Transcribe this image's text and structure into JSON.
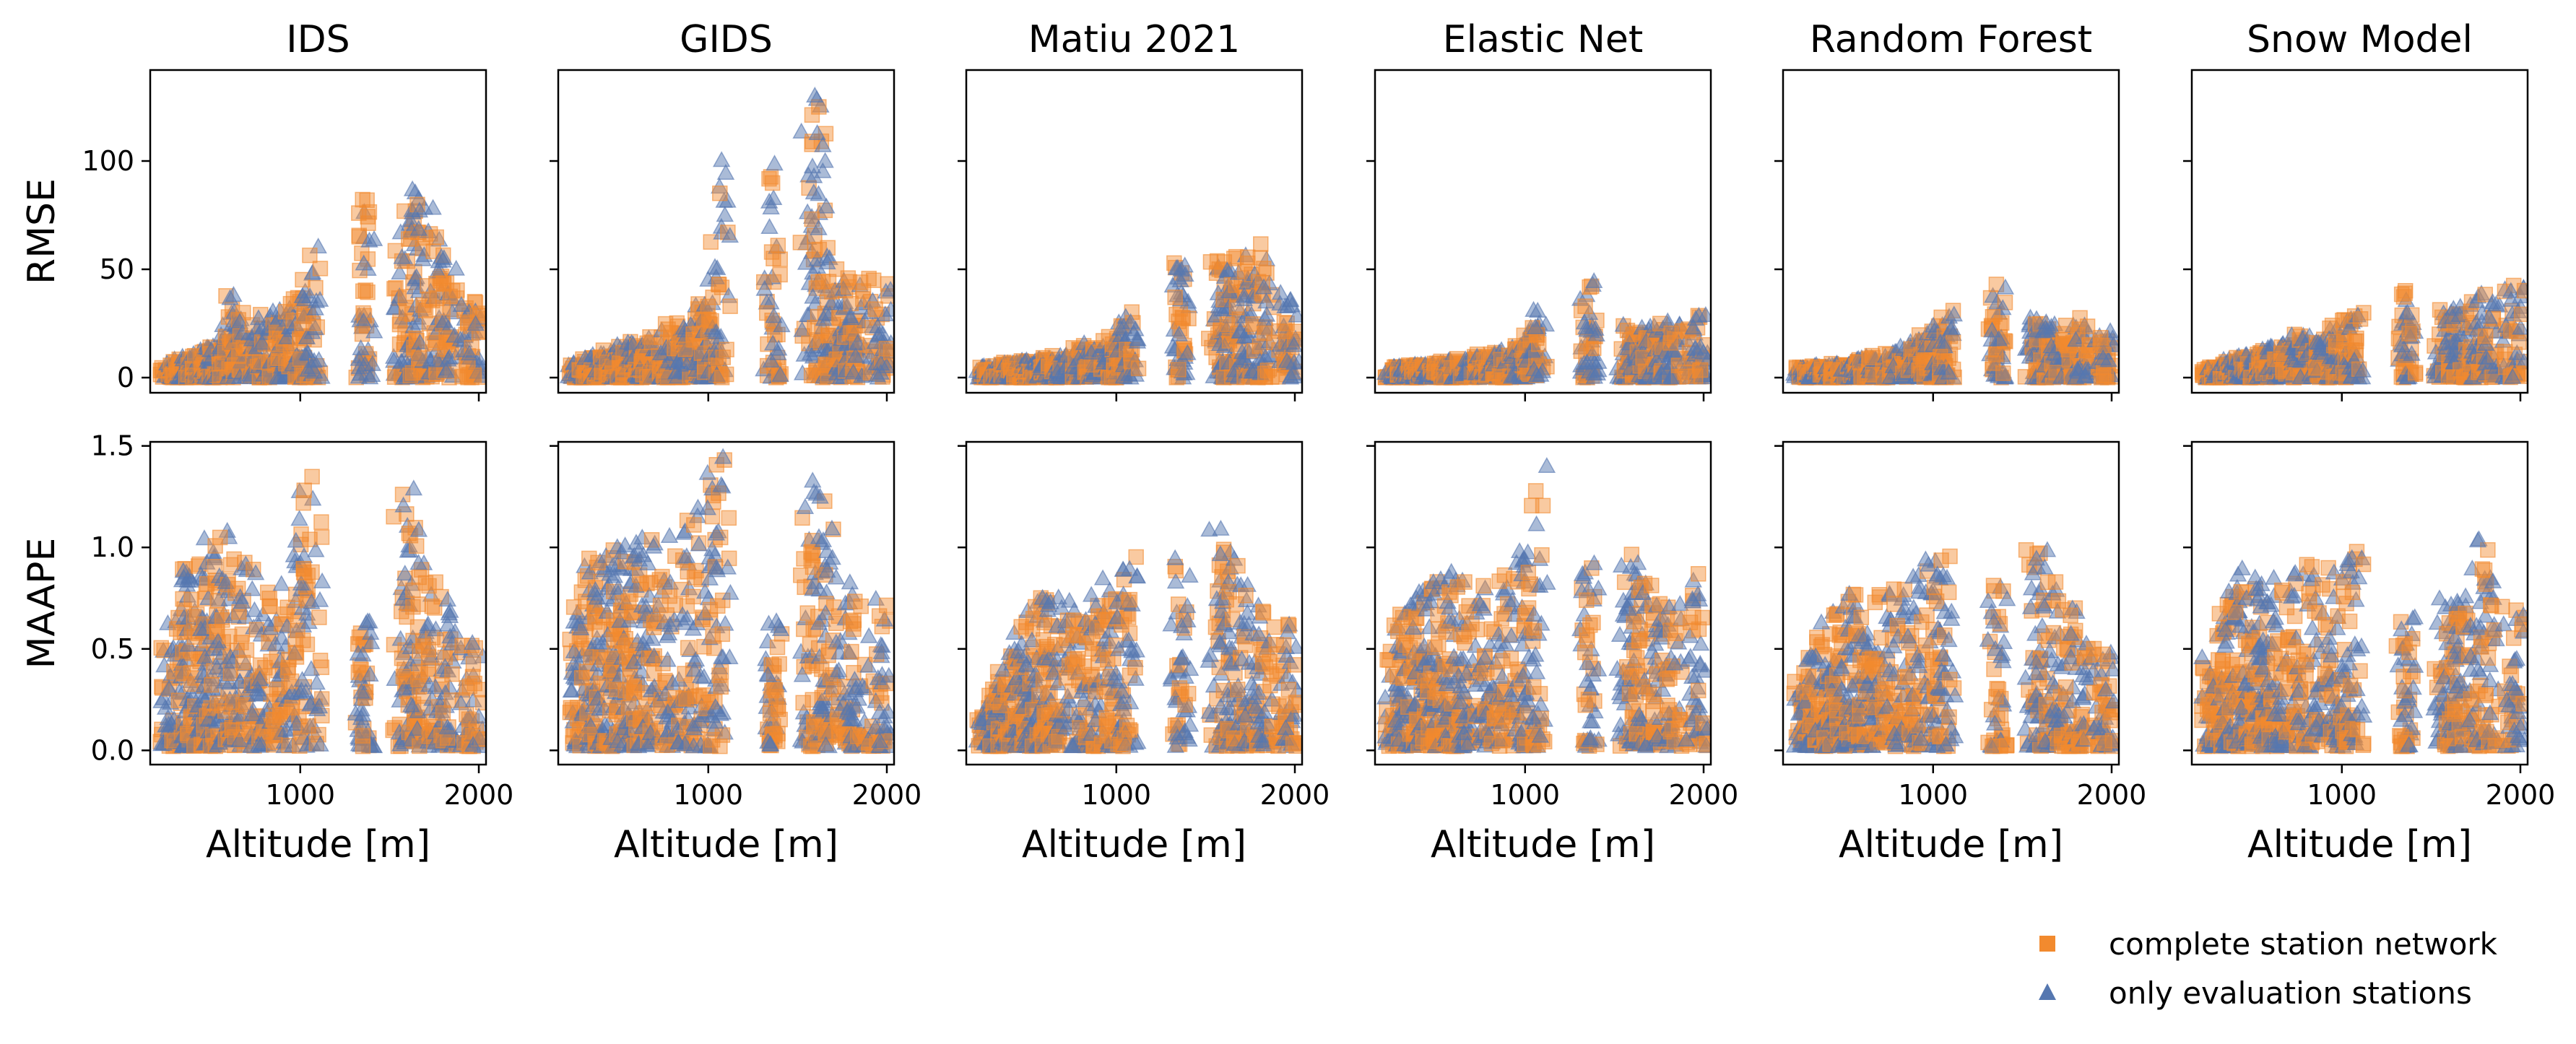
{
  "colors": {
    "complete": "#f28a2e",
    "evaluation": "#5577b0",
    "axis": "#000000",
    "background": "#ffffff"
  },
  "legend": {
    "placement": "bottom-right",
    "entries": [
      {
        "label": "complete station network",
        "marker": "square",
        "color": "#f28a2e"
      },
      {
        "label": "only evaluation stations",
        "marker": "triangle",
        "color": "#5577b0"
      }
    ]
  },
  "chart_data": {
    "type": "scatter",
    "layout": "grid 2 rows x 6 columns, shared axes per row",
    "columns": [
      "IDS",
      "GIDS",
      "Matiu 2021",
      "Elastic Net",
      "Random Forest",
      "Snow Model"
    ],
    "xlabel": "Altitude [m]",
    "xlim": [
      200,
      2000
    ],
    "xticks": [
      1000,
      2000
    ],
    "rows": [
      {
        "metric": "RMSE",
        "ylabel": "RMSE",
        "ylim": [
          -7,
          142
        ],
        "yticks": [
          0,
          50,
          100
        ]
      },
      {
        "metric": "MAAPE",
        "ylabel": "MAAPE",
        "ylim": [
          -0.07,
          1.52
        ],
        "yticks": [
          0.0,
          0.5,
          1.0,
          1.5
        ]
      }
    ],
    "station_altitudes": [
      260,
      290,
      320,
      350,
      380,
      410,
      440,
      470,
      500,
      530,
      560,
      590,
      620,
      660,
      700,
      760,
      800,
      860,
      900,
      960,
      1000,
      1040,
      1080,
      1350,
      1370,
      1560,
      1600,
      1620,
      1660,
      1700,
      1760,
      1800,
      1840,
      1940,
      1980
    ],
    "series": [
      {
        "name": "complete station network",
        "marker": "square",
        "color": "#f28a2e"
      },
      {
        "name": "only evaluation stations",
        "marker": "triangle",
        "color": "#5577b0"
      }
    ],
    "panels": [
      {
        "column": "IDS",
        "row": "RMSE",
        "cap": [
          [
            260,
            6
          ],
          [
            350,
            10
          ],
          [
            450,
            14
          ],
          [
            560,
            18
          ],
          [
            620,
            42
          ],
          [
            700,
            22
          ],
          [
            800,
            30
          ],
          [
            900,
            32
          ],
          [
            1000,
            40
          ],
          [
            1080,
            62
          ],
          [
            1350,
            85
          ],
          [
            1600,
            72
          ],
          [
            1660,
            93
          ],
          [
            1800,
            58
          ],
          [
            1980,
            32
          ]
        ],
        "spread": 0.7
      },
      {
        "column": "GIDS",
        "row": "RMSE",
        "cap": [
          [
            260,
            6
          ],
          [
            350,
            10
          ],
          [
            450,
            13
          ],
          [
            560,
            16
          ],
          [
            700,
            19
          ],
          [
            800,
            28
          ],
          [
            900,
            30
          ],
          [
            1000,
            38
          ],
          [
            1080,
            105
          ],
          [
            1350,
            105
          ],
          [
            1600,
            135
          ],
          [
            1700,
            60
          ],
          [
            1800,
            50
          ],
          [
            1980,
            45
          ]
        ],
        "spread": 0.7
      },
      {
        "column": "Matiu 2021",
        "row": "RMSE",
        "cap": [
          [
            260,
            5
          ],
          [
            400,
            7
          ],
          [
            560,
            9
          ],
          [
            700,
            12
          ],
          [
            800,
            15
          ],
          [
            1000,
            20
          ],
          [
            1080,
            33
          ],
          [
            1350,
            56
          ],
          [
            1600,
            54
          ],
          [
            1800,
            62
          ],
          [
            1980,
            34
          ]
        ],
        "spread": 0.7
      },
      {
        "column": "Elastic Net",
        "row": "RMSE",
        "cap": [
          [
            260,
            5
          ],
          [
            400,
            6
          ],
          [
            560,
            8
          ],
          [
            700,
            10
          ],
          [
            900,
            14
          ],
          [
            1040,
            25
          ],
          [
            1080,
            32
          ],
          [
            1350,
            47
          ],
          [
            1600,
            22
          ],
          [
            1800,
            26
          ],
          [
            1980,
            30
          ]
        ],
        "spread": 0.7
      },
      {
        "column": "Random Forest",
        "row": "RMSE",
        "cap": [
          [
            260,
            5
          ],
          [
            400,
            6
          ],
          [
            560,
            8
          ],
          [
            800,
            12
          ],
          [
            1000,
            22
          ],
          [
            1080,
            34
          ],
          [
            1350,
            44
          ],
          [
            1600,
            25
          ],
          [
            1800,
            28
          ],
          [
            1980,
            22
          ]
        ],
        "spread": 0.7
      },
      {
        "column": "Snow Model",
        "row": "RMSE",
        "cap": [
          [
            260,
            4
          ],
          [
            400,
            9
          ],
          [
            560,
            14
          ],
          [
            700,
            18
          ],
          [
            900,
            25
          ],
          [
            1080,
            30
          ],
          [
            1350,
            41
          ],
          [
            1600,
            30
          ],
          [
            1700,
            35
          ],
          [
            1800,
            44
          ],
          [
            1980,
            44
          ]
        ],
        "spread": 0.7
      },
      {
        "column": "IDS",
        "row": "MAAPE",
        "cap": [
          [
            260,
            0.55
          ],
          [
            350,
            0.9
          ],
          [
            450,
            0.95
          ],
          [
            560,
            1.2
          ],
          [
            620,
            0.98
          ],
          [
            700,
            0.95
          ],
          [
            800,
            0.85
          ],
          [
            900,
            0.8
          ],
          [
            1080,
            1.45
          ],
          [
            1350,
            0.6
          ],
          [
            1600,
            1.33
          ],
          [
            1700,
            0.95
          ],
          [
            1800,
            0.75
          ],
          [
            1980,
            0.55
          ]
        ],
        "spread": 0.85
      },
      {
        "column": "GIDS",
        "row": "MAAPE",
        "cap": [
          [
            260,
            0.6
          ],
          [
            350,
            0.95
          ],
          [
            450,
            1.0
          ],
          [
            560,
            1.05
          ],
          [
            700,
            1.05
          ],
          [
            800,
            1.1
          ],
          [
            900,
            1.15
          ],
          [
            1080,
            1.45
          ],
          [
            1350,
            0.62
          ],
          [
            1600,
            1.43
          ],
          [
            1700,
            0.97
          ],
          [
            1800,
            0.8
          ],
          [
            1980,
            0.8
          ]
        ],
        "spread": 0.85
      },
      {
        "column": "Matiu 2021",
        "row": "MAAPE",
        "cap": [
          [
            260,
            0.22
          ],
          [
            400,
            0.5
          ],
          [
            560,
            0.8
          ],
          [
            700,
            0.75
          ],
          [
            800,
            0.72
          ],
          [
            900,
            0.8
          ],
          [
            1080,
            0.98
          ],
          [
            1350,
            0.95
          ],
          [
            1600,
            1.12
          ],
          [
            1700,
            0.85
          ],
          [
            1800,
            0.72
          ],
          [
            1980,
            0.62
          ]
        ],
        "spread": 0.85
      },
      {
        "column": "Elastic Net",
        "row": "MAAPE",
        "cap": [
          [
            260,
            0.6
          ],
          [
            400,
            0.8
          ],
          [
            560,
            0.88
          ],
          [
            700,
            0.82
          ],
          [
            800,
            0.85
          ],
          [
            1000,
            1.0
          ],
          [
            1080,
            1.43
          ],
          [
            1350,
            0.92
          ],
          [
            1600,
            0.98
          ],
          [
            1800,
            0.72
          ],
          [
            1980,
            0.9
          ]
        ],
        "spread": 0.85
      },
      {
        "column": "Random Forest",
        "row": "MAAPE",
        "cap": [
          [
            260,
            0.42
          ],
          [
            400,
            0.65
          ],
          [
            560,
            0.8
          ],
          [
            700,
            0.78
          ],
          [
            800,
            0.82
          ],
          [
            1080,
            0.99
          ],
          [
            1350,
            0.82
          ],
          [
            1600,
            1.07
          ],
          [
            1700,
            0.72
          ],
          [
            1800,
            0.7
          ],
          [
            1980,
            0.5
          ]
        ],
        "spread": 0.85
      },
      {
        "column": "Snow Model",
        "row": "MAAPE",
        "cap": [
          [
            260,
            0.5
          ],
          [
            400,
            0.9
          ],
          [
            560,
            0.85
          ],
          [
            700,
            0.9
          ],
          [
            900,
            0.95
          ],
          [
            1080,
            0.99
          ],
          [
            1350,
            0.68
          ],
          [
            1600,
            0.78
          ],
          [
            1700,
            0.8
          ],
          [
            1800,
            1.07
          ],
          [
            1980,
            0.7
          ]
        ],
        "spread": 0.85
      }
    ]
  }
}
